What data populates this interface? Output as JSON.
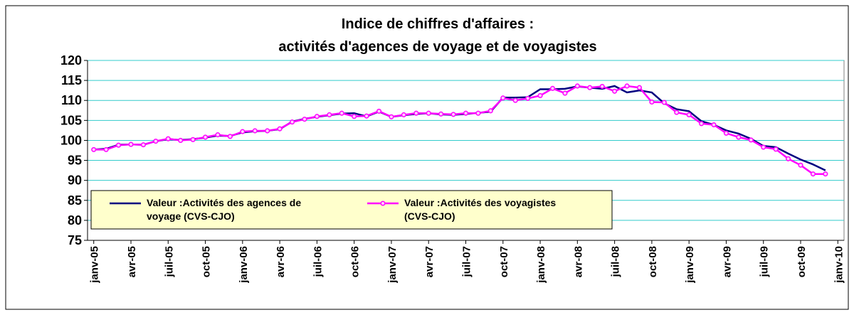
{
  "chart_data": {
    "type": "line",
    "title": "Indice de chiffres d'affaires :",
    "subtitle": "activités d'agences de voyage et de voyagistes",
    "categories": [
      "janv-05",
      null,
      null,
      "avr-05",
      null,
      null,
      "juil-05",
      null,
      null,
      "oct-05",
      null,
      null,
      "janv-06",
      null,
      null,
      "avr-06",
      null,
      null,
      "juil-06",
      null,
      null,
      "oct-06",
      null,
      null,
      "janv-07",
      null,
      null,
      "avr-07",
      null,
      null,
      "juil-07",
      null,
      null,
      "oct-07",
      null,
      null,
      "janv-08",
      null,
      null,
      "avr-08",
      null,
      null,
      "juil-08",
      null,
      null,
      "oct-08",
      null,
      null,
      "janv-09",
      null,
      null,
      "avr-09",
      null,
      null,
      "juil-09",
      null,
      null,
      "oct-09",
      null,
      null,
      "janv-10"
    ],
    "series": [
      {
        "name": "Valeur :Activités des agences de voyage (CVS-CJO)",
        "color": "#000080",
        "marker": false,
        "values": [
          97.7,
          97.9,
          98.9,
          99.0,
          98.9,
          99.8,
          100.3,
          100.1,
          100.3,
          100.7,
          101.2,
          101.1,
          102.0,
          102.3,
          102.4,
          102.8,
          104.7,
          105.4,
          105.9,
          106.3,
          106.7,
          106.8,
          106.0,
          107.2,
          105.9,
          106.3,
          106.6,
          106.8,
          106.5,
          106.4,
          106.6,
          106.9,
          107.2,
          110.7,
          110.7,
          110.8,
          112.8,
          112.8,
          112.9,
          113.5,
          113.2,
          112.9,
          113.6,
          112.0,
          112.5,
          112.0,
          109.3,
          107.8,
          107.3,
          104.8,
          103.9,
          102.5,
          101.7,
          100.4,
          98.6,
          98.3,
          96.7,
          95.2,
          94.0,
          92.5,
          null
        ]
      },
      {
        "name": "Valeur :Activités des voyagistes (CVS-CJO)",
        "color": "#ff00ff",
        "marker": true,
        "values": [
          97.7,
          97.7,
          98.8,
          99.0,
          98.9,
          99.8,
          100.4,
          100.0,
          100.2,
          100.8,
          101.4,
          101.0,
          102.2,
          102.4,
          102.4,
          102.9,
          104.6,
          105.3,
          106.0,
          106.4,
          106.8,
          106.0,
          106.1,
          107.3,
          105.9,
          106.4,
          106.8,
          106.8,
          106.6,
          106.5,
          106.8,
          106.8,
          107.4,
          110.6,
          110.0,
          110.5,
          111.2,
          113.0,
          111.8,
          113.6,
          113.2,
          113.5,
          112.3,
          113.6,
          113.2,
          109.6,
          109.5,
          107.0,
          106.4,
          104.2,
          103.9,
          101.8,
          100.8,
          100.1,
          98.3,
          97.8,
          95.4,
          93.8,
          91.6,
          91.6,
          null
        ]
      }
    ],
    "ylim": [
      75,
      120
    ],
    "yticks": [
      75,
      80,
      85,
      90,
      95,
      100,
      105,
      110,
      115,
      120
    ],
    "grid": true,
    "grid_color": "#33cccc",
    "legend": "lower left"
  }
}
